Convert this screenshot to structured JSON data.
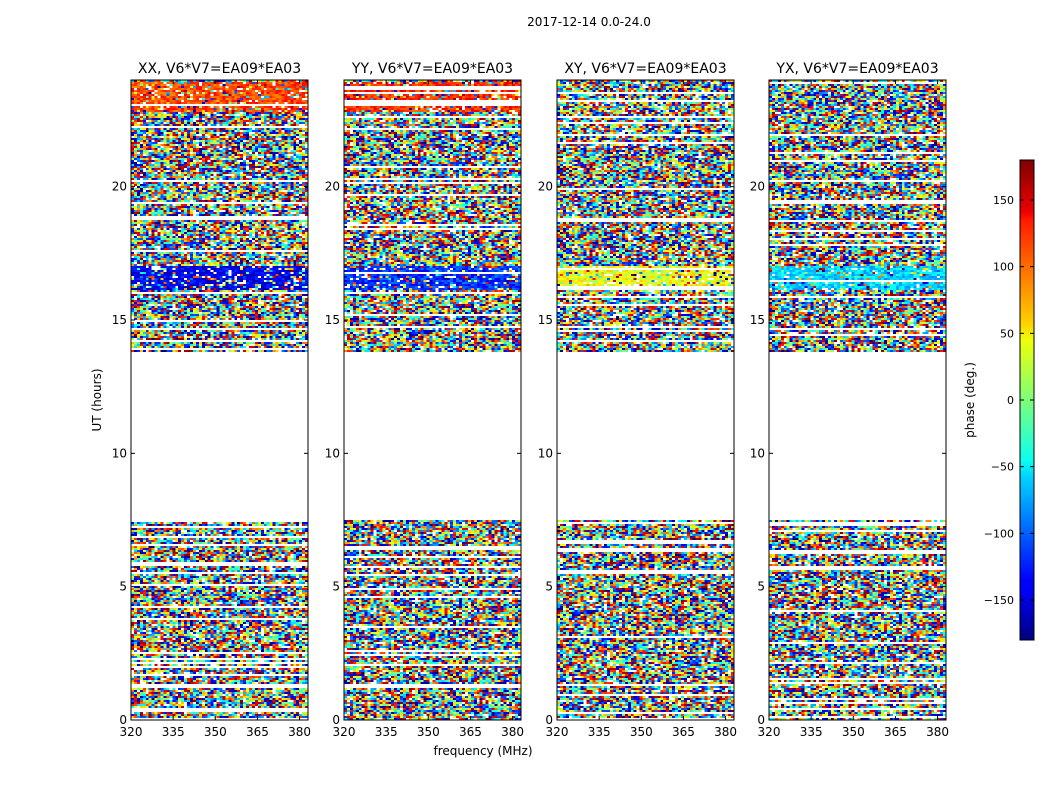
{
  "chart_data": {
    "type": "heatmap",
    "title": "2017-12-14 0.0-24.0",
    "xlabel": "frequency (MHz)",
    "ylabel": "UT (hours)",
    "xlim": [
      320,
      383
    ],
    "ylim": [
      0,
      24
    ],
    "xticks": [
      320,
      335,
      350,
      365,
      380
    ],
    "yticks": [
      0,
      5,
      10,
      15,
      20
    ],
    "gap_hours": [
      7.5,
      13.8
    ],
    "panels": [
      {
        "title": "XX, V6*V7=EA09*EA03",
        "bias": [
          {
            "from": 16.1,
            "to": 17.0,
            "phase": -140
          },
          {
            "from": 22.8,
            "to": 23.9,
            "phase": 110
          }
        ]
      },
      {
        "title": "YY, V6*V7=EA09*EA03",
        "bias": [
          {
            "from": 16.1,
            "to": 17.0,
            "phase": -115
          },
          {
            "from": 22.8,
            "to": 23.9,
            "phase": 120
          }
        ]
      },
      {
        "title": "XY, V6*V7=EA09*EA03",
        "bias": [
          {
            "from": 16.1,
            "to": 17.0,
            "phase": 40
          }
        ]
      },
      {
        "title": "YX, V6*V7=EA09*EA03",
        "bias": [
          {
            "from": 16.1,
            "to": 17.0,
            "phase": -60
          }
        ]
      }
    ],
    "colorbar": {
      "label": "phase (deg.)",
      "range": [
        -180,
        180
      ],
      "ticks": [
        150,
        100,
        50,
        0,
        -50,
        -100,
        -150
      ],
      "tick_labels": [
        "150",
        "100",
        "50",
        "0",
        "−50",
        "−100",
        "−150"
      ],
      "colormap": "jet"
    }
  }
}
